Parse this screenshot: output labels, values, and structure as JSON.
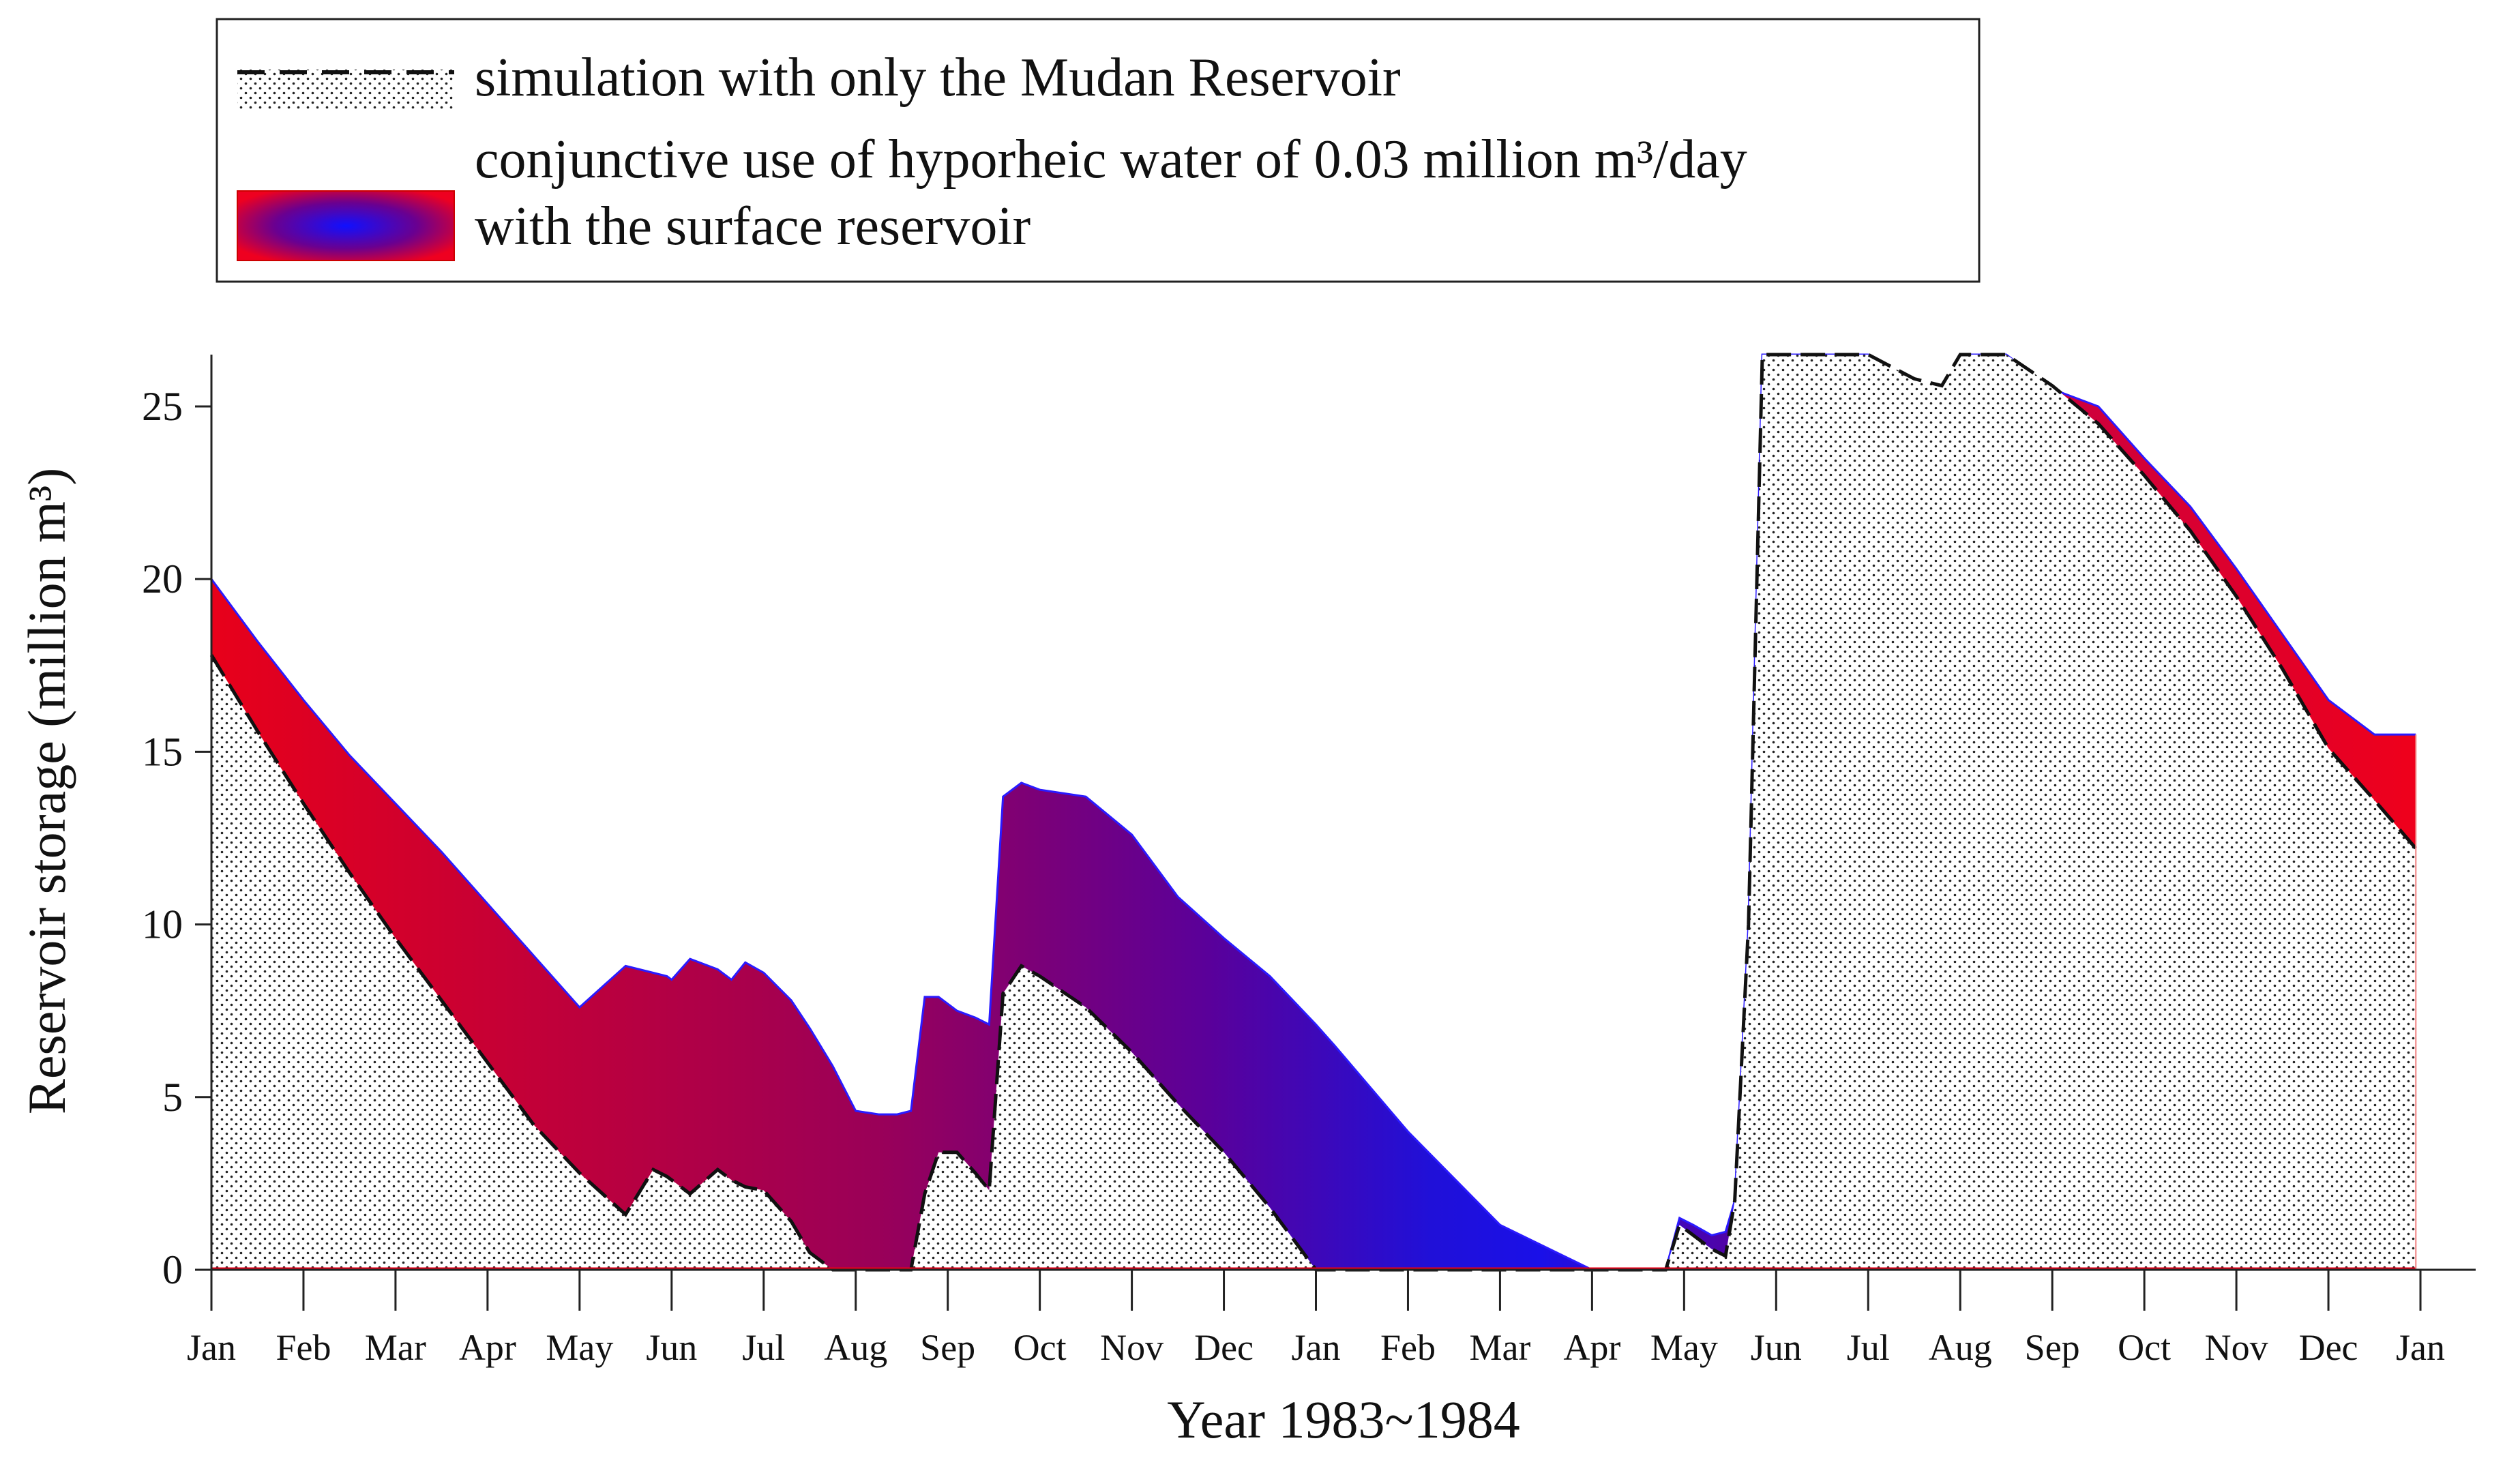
{
  "chart_data": {
    "type": "area",
    "title": "",
    "xlabel": "Year 1983~1984",
    "ylabel": "Reservoir storage (million m³)",
    "ylim": [
      0,
      26.5
    ],
    "xlim": [
      0,
      24.6
    ],
    "grid": false,
    "legend_position": "top",
    "y_ticks": [
      0,
      5,
      10,
      15,
      20,
      25
    ],
    "x_tick_labels": [
      "Jan",
      "Feb",
      "Mar",
      "Apr",
      "May",
      "Jun",
      "Jul",
      "Aug",
      "Sep",
      "Oct",
      "Nov",
      "Dec",
      "Jan",
      "Feb",
      "Mar",
      "Apr",
      "May",
      "Jun",
      "Jul",
      "Aug",
      "Sep",
      "Oct",
      "Nov",
      "Dec",
      "Jan"
    ],
    "x_units": "months since Jan 1983",
    "legend": {
      "entry1": "simulation with only the Mudan Reservoir",
      "entry2_line1": "conjunctive use of hyporheic water of 0.03 million m³/day",
      "entry2_line2": "with the surface reservoir"
    },
    "series": [
      {
        "name": "simulation with only the Mudan Reservoir",
        "style": "dashed-line-dotted-fill",
        "x": [
          0,
          0.5,
          1,
          1.5,
          2,
          2.5,
          3,
          3.5,
          4,
          4.5,
          4.8,
          4.95,
          5.0,
          5.2,
          5.5,
          5.65,
          5.8,
          6.0,
          6.3,
          6.5,
          6.75,
          7.0,
          7.25,
          7.45,
          7.6,
          7.75,
          7.9,
          8.1,
          8.3,
          8.45,
          8.6,
          8.8,
          9,
          9.5,
          10,
          10.5,
          11,
          11.5,
          12,
          12.2,
          13,
          14,
          15,
          15.5,
          15.8,
          15.95,
          16.1,
          16.3,
          16.45,
          16.55,
          16.7,
          16.85,
          16.95,
          17.0,
          17.5,
          18,
          18.5,
          18.8,
          19,
          19.5,
          20,
          20.5,
          21,
          21.5,
          22,
          22.5,
          23,
          23.5,
          23.95
        ],
        "values": [
          17.8,
          15.6,
          13.5,
          11.5,
          9.6,
          7.8,
          6.0,
          4.2,
          2.8,
          1.6,
          2.9,
          2.7,
          2.6,
          2.2,
          2.9,
          2.6,
          2.4,
          2.3,
          1.4,
          0.5,
          0,
          0,
          0,
          0,
          0,
          2.2,
          3.4,
          3.4,
          2.8,
          2.3,
          8.0,
          8.8,
          8.5,
          7.6,
          6.3,
          4.8,
          3.4,
          1.8,
          0,
          0,
          0,
          0,
          0,
          0,
          0,
          1.3,
          1.0,
          0.6,
          0.4,
          2.0,
          10.0,
          26.5,
          26.5,
          26.5,
          26.5,
          26.5,
          25.8,
          25.6,
          26.5,
          26.5,
          25.6,
          24.5,
          23.0,
          21.4,
          19.5,
          17.4,
          15.1,
          13.6,
          12.2
        ]
      },
      {
        "name": "conjunctive use of hyporheic water of 0.03 million m³/day with the surface reservoir",
        "style": "red-blue-gradient-fill",
        "x": [
          0,
          0.5,
          1,
          1.5,
          2,
          2.5,
          3,
          3.5,
          4,
          4.5,
          4.8,
          4.95,
          5.0,
          5.2,
          5.5,
          5.65,
          5.8,
          6.0,
          6.3,
          6.5,
          6.75,
          7.0,
          7.25,
          7.45,
          7.6,
          7.75,
          7.9,
          8.1,
          8.3,
          8.45,
          8.6,
          8.8,
          9,
          9.5,
          10,
          10.5,
          11,
          11.5,
          12,
          12.2,
          13,
          14,
          15,
          15.5,
          15.8,
          15.95,
          16.1,
          16.3,
          16.45,
          16.55,
          16.7,
          16.85,
          16.95,
          17.0,
          17.5,
          18,
          18.5,
          18.8,
          19,
          19.5,
          20,
          20.5,
          21,
          21.5,
          22,
          22.5,
          23,
          23.5,
          23.95
        ],
        "values": [
          20.0,
          18.2,
          16.5,
          14.9,
          13.5,
          12.1,
          10.6,
          9.1,
          7.6,
          8.8,
          8.6,
          8.5,
          8.4,
          9.0,
          8.7,
          8.4,
          8.9,
          8.6,
          7.8,
          7.0,
          5.9,
          4.6,
          4.5,
          4.5,
          4.6,
          7.9,
          7.9,
          7.5,
          7.3,
          7.1,
          13.7,
          14.1,
          13.9,
          13.7,
          12.6,
          10.8,
          9.6,
          8.5,
          7.1,
          6.5,
          4.0,
          1.3,
          0,
          0,
          0,
          1.5,
          1.3,
          1.0,
          1.1,
          2.0,
          10.0,
          26.5,
          26.5,
          26.5,
          26.5,
          26.5,
          25.5,
          25.4,
          26.5,
          26.5,
          25.5,
          25.0,
          23.5,
          22.1,
          20.3,
          18.4,
          16.5,
          15.5,
          15.5
        ]
      }
    ]
  }
}
